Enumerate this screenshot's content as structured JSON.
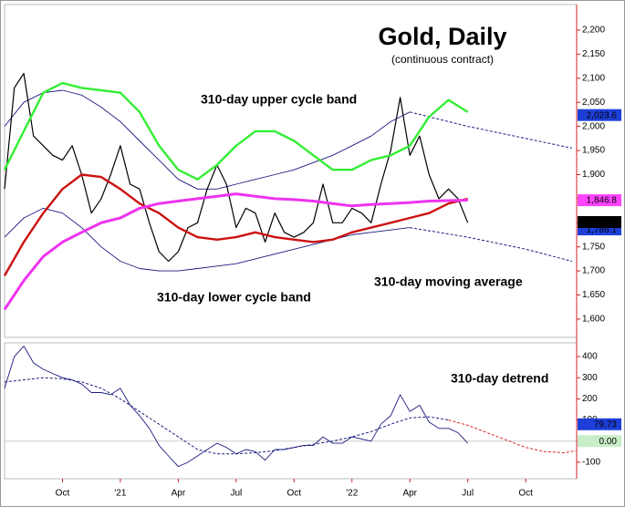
{
  "chart_data": [
    {
      "type": "line",
      "title": "Gold, Daily",
      "subtitle": "(continuous contract)",
      "xlim": [
        2020.5,
        2022.97
      ],
      "ylim": [
        1562,
        2253
      ],
      "yticks": [
        {
          "value": 1600,
          "label": "1,600"
        },
        {
          "value": 1650,
          "label": "1,650"
        },
        {
          "value": 1700,
          "label": "1,700"
        },
        {
          "value": 1750,
          "label": "1,750"
        },
        {
          "value": 1800,
          "label": "1,800"
        },
        {
          "value": 1850,
          "label": "1,850"
        },
        {
          "value": 1900,
          "label": "1,900"
        },
        {
          "value": 1950,
          "label": "1,950"
        },
        {
          "value": 2000,
          "label": "2,000"
        },
        {
          "value": 2050,
          "label": "2,050"
        },
        {
          "value": 2100,
          "label": "2,100"
        },
        {
          "value": 2150,
          "label": "2,150"
        },
        {
          "value": 2200,
          "label": "2,200"
        }
      ],
      "annotations": [
        {
          "text": "310-day upper cycle band",
          "color": "#33cc33"
        },
        {
          "text": "310-day lower cycle band",
          "color": "#cc1111"
        },
        {
          "text": "310-day moving average",
          "color": "#dd33dd"
        }
      ],
      "price_labels": [
        {
          "value": 2023.6,
          "label": "2,023.6",
          "color": "#1d3fd8",
          "text_color": "#ffffff"
        },
        {
          "value": 1846.8,
          "label": "1,846.8",
          "color": "#ff44ff",
          "text_color": "#ffffff"
        },
        {
          "value": 1786.1,
          "label": "1,786.1",
          "color": "#1d3fd8",
          "text_color": "#ffffff"
        },
        {
          "value": 1801.5,
          "label": "1,801.5",
          "color": "#000000",
          "text_color": "#ffffff"
        }
      ],
      "series": [
        {
          "color": "#1a1a80",
          "width": 0.9,
          "dash": false,
          "x": [
            2020.5,
            2020.583,
            2020.667,
            2020.75,
            2020.833,
            2020.917,
            2021.0,
            2021.083,
            2021.167,
            2021.25,
            2021.333,
            2021.417,
            2021.5,
            2021.583,
            2021.667,
            2021.75,
            2021.833,
            2021.917,
            2022.0,
            2022.083,
            2022.167,
            2022.25
          ],
          "values": [
            2000,
            2050,
            2070,
            2075,
            2065,
            2040,
            2010,
            1970,
            1930,
            1890,
            1870,
            1870,
            1880,
            1890,
            1900,
            1910,
            1925,
            1940,
            1960,
            1980,
            2010,
            2030
          ]
        },
        {
          "color": "#1a1a80",
          "width": 0.9,
          "dash": false,
          "x": [
            2020.5,
            2020.583,
            2020.667,
            2020.75,
            2020.833,
            2020.917,
            2021.0,
            2021.083,
            2021.167,
            2021.25,
            2021.333,
            2021.417,
            2021.5,
            2021.583,
            2021.667,
            2021.75,
            2021.833,
            2021.917,
            2022.0,
            2022.083,
            2022.167,
            2022.25
          ],
          "values": [
            1770,
            1810,
            1830,
            1820,
            1790,
            1750,
            1720,
            1705,
            1700,
            1700,
            1705,
            1710,
            1715,
            1725,
            1735,
            1745,
            1755,
            1765,
            1775,
            1780,
            1785,
            1790
          ]
        },
        {
          "color": "#1a1a80",
          "width": 1,
          "dash": true,
          "x": [
            2022.25,
            2022.5,
            2022.75,
            2022.95
          ],
          "values": [
            2030,
            2000,
            1975,
            1955
          ]
        },
        {
          "color": "#1a1a80",
          "width": 1,
          "dash": true,
          "x": [
            2022.25,
            2022.5,
            2022.75,
            2022.95
          ],
          "values": [
            1790,
            1770,
            1745,
            1720
          ]
        },
        {
          "color": "#000000",
          "width": 1.2,
          "dash": false,
          "x": [
            2020.5,
            2020.542,
            2020.583,
            2020.625,
            2020.667,
            2020.708,
            2020.75,
            2020.792,
            2020.833,
            2020.875,
            2020.917,
            2020.958,
            2021.0,
            2021.042,
            2021.083,
            2021.125,
            2021.167,
            2021.208,
            2021.25,
            2021.292,
            2021.333,
            2021.375,
            2021.417,
            2021.458,
            2021.5,
            2021.542,
            2021.583,
            2021.625,
            2021.667,
            2021.708,
            2021.75,
            2021.792,
            2021.833,
            2021.875,
            2021.917,
            2021.958,
            2022.0,
            2022.042,
            2022.083,
            2022.125,
            2022.167,
            2022.208,
            2022.25,
            2022.292,
            2022.333,
            2022.375,
            2022.417,
            2022.458,
            2022.5
          ],
          "values": [
            1870,
            2080,
            2110,
            1980,
            1960,
            1940,
            1930,
            1960,
            1900,
            1820,
            1850,
            1900,
            1960,
            1880,
            1870,
            1800,
            1740,
            1720,
            1740,
            1790,
            1800,
            1870,
            1920,
            1880,
            1790,
            1830,
            1820,
            1760,
            1820,
            1780,
            1770,
            1780,
            1800,
            1880,
            1800,
            1800,
            1830,
            1820,
            1800,
            1880,
            1950,
            2060,
            1940,
            1980,
            1900,
            1850,
            1870,
            1850,
            1800
          ]
        },
        {
          "color": "#33ee33",
          "width": 2.4,
          "dash": false,
          "x": [
            2020.5,
            2020.583,
            2020.667,
            2020.75,
            2020.833,
            2020.917,
            2021.0,
            2021.083,
            2021.167,
            2021.25,
            2021.333,
            2021.417,
            2021.5,
            2021.583,
            2021.667,
            2021.75,
            2021.833,
            2021.917,
            2022.0,
            2022.083,
            2022.167,
            2022.25,
            2022.333,
            2022.417,
            2022.5
          ],
          "values": [
            1910,
            1990,
            2070,
            2090,
            2080,
            2075,
            2070,
            2030,
            1960,
            1910,
            1890,
            1920,
            1960,
            1990,
            1990,
            1970,
            1940,
            1910,
            1910,
            1930,
            1940,
            1960,
            2020,
            2055,
            2030
          ]
        },
        {
          "color": "#cc1111",
          "width": 2.4,
          "dash": false,
          "x": [
            2020.5,
            2020.583,
            2020.667,
            2020.75,
            2020.833,
            2020.917,
            2021.0,
            2021.083,
            2021.167,
            2021.25,
            2021.333,
            2021.417,
            2021.5,
            2021.583,
            2021.667,
            2021.75,
            2021.833,
            2021.917,
            2022.0,
            2022.083,
            2022.167,
            2022.25,
            2022.333,
            2022.417,
            2022.5
          ],
          "values": [
            1690,
            1760,
            1820,
            1870,
            1900,
            1895,
            1870,
            1840,
            1820,
            1790,
            1770,
            1765,
            1770,
            1780,
            1770,
            1765,
            1760,
            1765,
            1780,
            1790,
            1800,
            1810,
            1820,
            1840,
            1850
          ]
        },
        {
          "color": "#ee33ee",
          "width": 3,
          "dash": false,
          "x": [
            2020.5,
            2020.583,
            2020.667,
            2020.75,
            2020.833,
            2020.917,
            2021.0,
            2021.083,
            2021.167,
            2021.25,
            2021.333,
            2021.417,
            2021.5,
            2021.583,
            2021.667,
            2021.75,
            2021.833,
            2021.917,
            2022.0,
            2022.083,
            2022.167,
            2022.25,
            2022.333,
            2022.417,
            2022.5
          ],
          "values": [
            1620,
            1680,
            1730,
            1760,
            1780,
            1800,
            1810,
            1830,
            1840,
            1845,
            1850,
            1855,
            1860,
            1855,
            1850,
            1848,
            1845,
            1840,
            1835,
            1838,
            1840,
            1842,
            1845,
            1846,
            1847
          ]
        }
      ]
    },
    {
      "type": "line",
      "xlim": [
        2020.5,
        2022.97
      ],
      "ylim": [
        -178,
        465
      ],
      "yticks": [
        -100,
        0,
        100,
        200,
        300,
        400
      ],
      "xticks": [
        {
          "value": 2020.75,
          "label": "Oct"
        },
        {
          "value": 2021.0,
          "label": "'21"
        },
        {
          "value": 2021.25,
          "label": "Apr"
        },
        {
          "value": 2021.5,
          "label": "Jul"
        },
        {
          "value": 2021.75,
          "label": "Oct"
        },
        {
          "value": 2022.0,
          "label": "'22"
        },
        {
          "value": 2022.25,
          "label": "Apr"
        },
        {
          "value": 2022.5,
          "label": "Jul"
        },
        {
          "value": 2022.75,
          "label": "Oct"
        }
      ],
      "annotations": [
        {
          "text": "310-day detrend",
          "color": "#000000"
        }
      ],
      "price_labels": [
        {
          "value": 79.73,
          "label": "79.73",
          "color": "#1d3fd8",
          "text_color": "#ffffff"
        },
        {
          "value": 0,
          "label": "0.00",
          "color": "#c8eec8",
          "text_color": "#888888"
        }
      ],
      "series": [
        {
          "color": "#1a1a80",
          "width": 1,
          "dash": true,
          "x": [
            2020.5,
            2020.583,
            2020.667,
            2020.75,
            2020.833,
            2020.917,
            2021.0,
            2021.083,
            2021.167,
            2021.25,
            2021.333,
            2021.417,
            2021.5,
            2021.583,
            2021.667,
            2021.75,
            2021.833,
            2021.917,
            2022.0,
            2022.083,
            2022.167,
            2022.25,
            2022.333,
            2022.417
          ],
          "values": [
            280,
            290,
            300,
            295,
            280,
            250,
            200,
            140,
            80,
            20,
            -40,
            -60,
            -60,
            -55,
            -45,
            -30,
            -15,
            0,
            20,
            45,
            80,
            110,
            115,
            100
          ]
        },
        {
          "color": "#dd2222",
          "width": 1,
          "dash": true,
          "x": [
            2022.417,
            2022.5,
            2022.583,
            2022.667,
            2022.75,
            2022.833,
            2022.917,
            2022.97
          ],
          "values": [
            100,
            75,
            40,
            5,
            -30,
            -50,
            -55,
            -45
          ]
        },
        {
          "color": "#1a1a80",
          "width": 0.9,
          "dash": false,
          "x": [
            2020.5,
            2020.542,
            2020.583,
            2020.625,
            2020.667,
            2020.708,
            2020.75,
            2020.792,
            2020.833,
            2020.875,
            2020.917,
            2020.958,
            2021.0,
            2021.042,
            2021.083,
            2021.125,
            2021.167,
            2021.208,
            2021.25,
            2021.292,
            2021.333,
            2021.375,
            2021.417,
            2021.458,
            2021.5,
            2021.542,
            2021.583,
            2021.625,
            2021.667,
            2021.708,
            2021.75,
            2021.792,
            2021.833,
            2021.875,
            2021.917,
            2021.958,
            2022.0,
            2022.042,
            2022.083,
            2022.125,
            2022.167,
            2022.208,
            2022.25,
            2022.292,
            2022.333,
            2022.375,
            2022.417,
            2022.458,
            2022.5
          ],
          "values": [
            250,
            400,
            450,
            370,
            340,
            320,
            300,
            290,
            270,
            230,
            230,
            220,
            250,
            170,
            120,
            60,
            -20,
            -70,
            -120,
            -100,
            -70,
            -40,
            -10,
            -30,
            -60,
            -40,
            -50,
            -90,
            -40,
            -40,
            -30,
            -20,
            -20,
            20,
            -10,
            -10,
            20,
            10,
            0,
            80,
            120,
            220,
            140,
            170,
            90,
            60,
            60,
            40,
            -10
          ]
        }
      ]
    }
  ]
}
